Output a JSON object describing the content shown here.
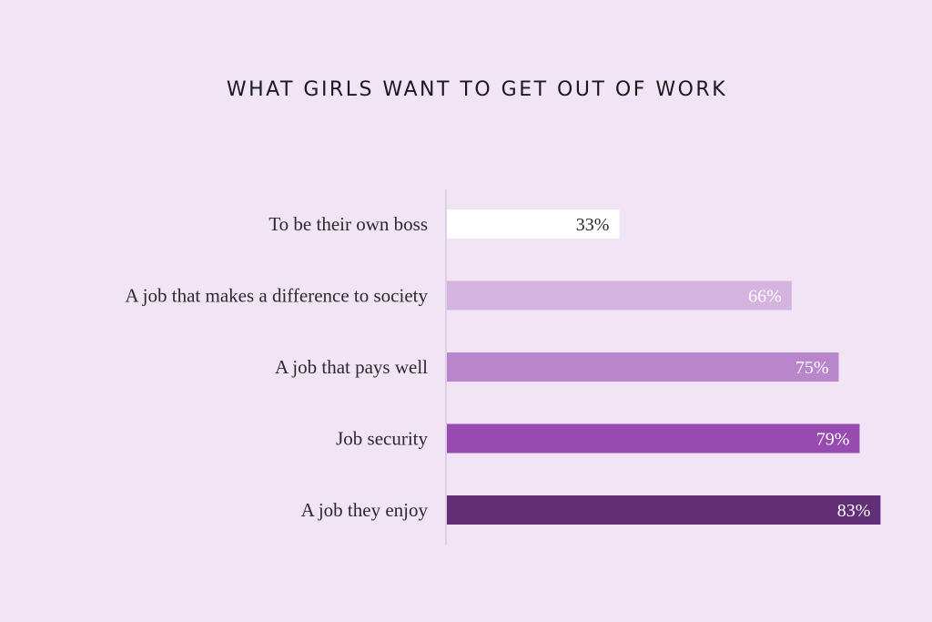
{
  "chart_data": {
    "type": "bar",
    "orientation": "horizontal",
    "title": "WHAT GIRLS WANT TO GET OUT OF WORK",
    "categories": [
      "To be their own boss",
      "A job that makes a difference to society",
      "A job that pays well",
      "Job security",
      "A job they enjoy"
    ],
    "values": [
      33,
      66,
      75,
      79,
      83
    ],
    "value_labels": [
      "33%",
      "66%",
      "75%",
      "79%",
      "83%"
    ],
    "unit": "%",
    "xlim": [
      0,
      100
    ],
    "grid": false,
    "legend": "none",
    "bar_colors": [
      "#ffffff",
      "#d4b3de",
      "#b985cb",
      "#974bb0",
      "#622e75"
    ],
    "value_label_colors": [
      "#2a2a2a",
      "#ffffff",
      "#ffffff",
      "#ffffff",
      "#ffffff"
    ],
    "axis_color": "#d9c8df",
    "background": "#f0e4f5"
  }
}
